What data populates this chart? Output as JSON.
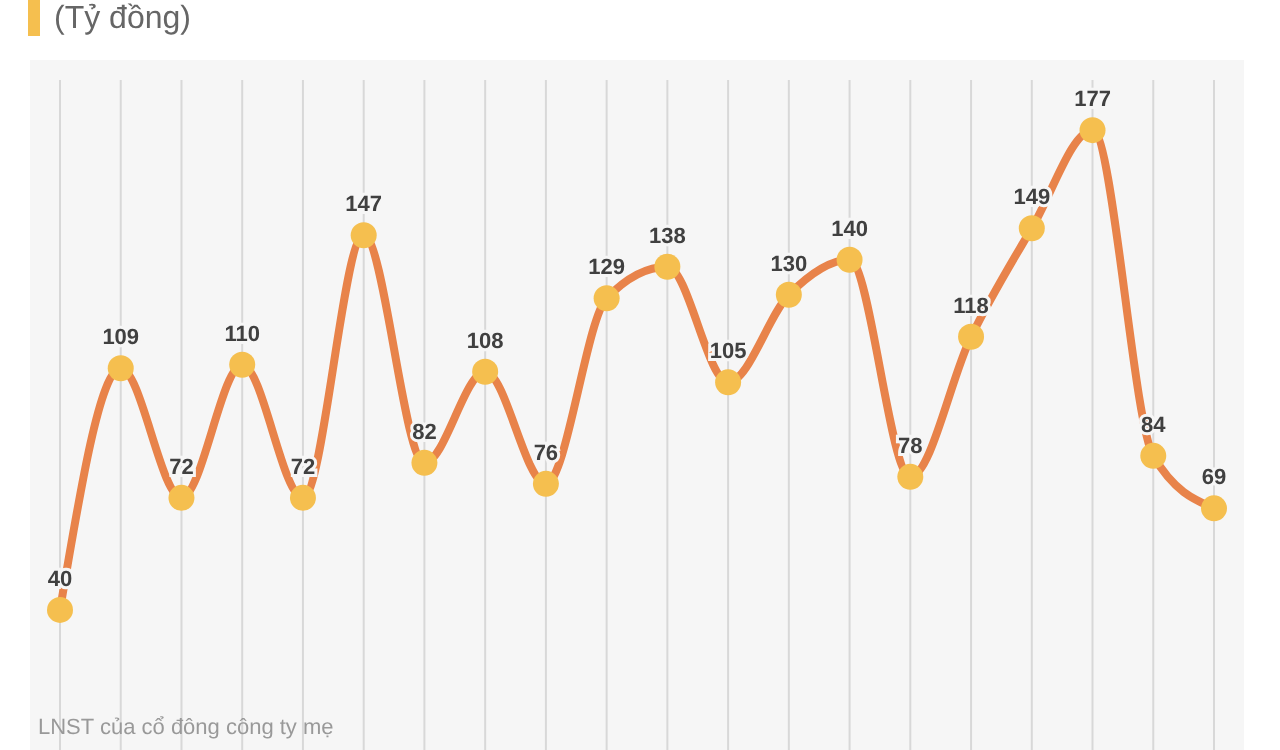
{
  "chart_data": {
    "type": "line",
    "title": "(Tỷ đồng)",
    "categories": [
      null,
      null,
      null,
      null,
      null,
      null,
      null,
      null,
      null,
      null,
      null,
      null,
      null,
      null,
      null,
      null,
      null,
      null,
      null,
      null
    ],
    "series": [
      {
        "color": "#e8834a",
        "values": [
          40,
          109,
          72,
          110,
          72,
          147,
          82,
          108,
          76,
          129,
          138,
          105,
          130,
          140,
          78,
          118,
          149,
          177,
          84,
          69
        ]
      }
    ],
    "grid": "x",
    "marker": "circle",
    "line_style": "solid",
    "data_labels": true,
    "annotations": [
      "LNST của cổ đông công ty mẹ"
    ]
  }
}
